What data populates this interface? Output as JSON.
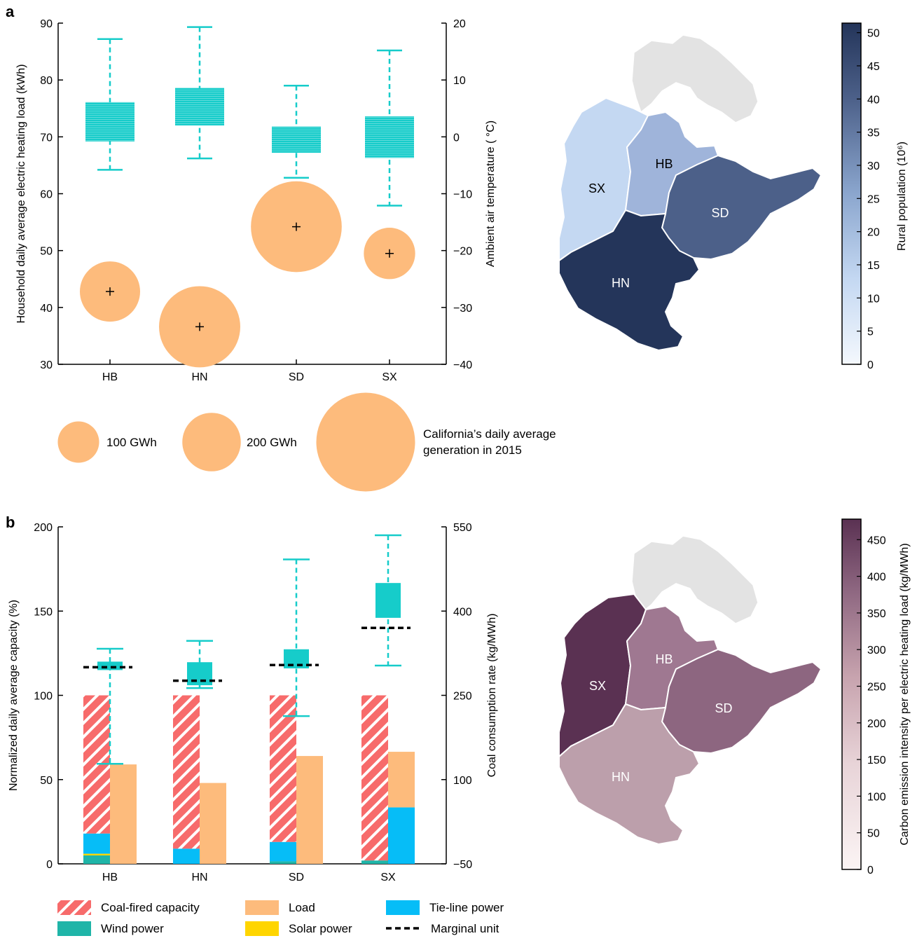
{
  "panel_a_label": "a",
  "panel_b_label": "b",
  "chart_data": [
    {
      "type": "box+bubble",
      "panel": "a",
      "categories": [
        "HB",
        "HN",
        "SD",
        "SX"
      ],
      "ylabel": "Household daily average electric heating load (kWh)",
      "ylim": [
        30,
        90
      ],
      "yticks": [
        30,
        40,
        50,
        60,
        70,
        80,
        90
      ],
      "y2label": "Ambient air temperature ( °C)",
      "y2lim": [
        -40,
        20
      ],
      "y2ticks": [
        -40,
        -30,
        -20,
        -10,
        0,
        10,
        20
      ],
      "boxes": [
        {
          "category": "HB",
          "min": 64.2,
          "q1": 69.2,
          "q3": 76.1,
          "max": 87.2
        },
        {
          "category": "HN",
          "min": 66.2,
          "q1": 72.0,
          "q3": 78.6,
          "max": 89.3
        },
        {
          "category": "SD",
          "min": 62.8,
          "q1": 67.2,
          "q3": 71.8,
          "max": 79.0
        },
        {
          "category": "SX",
          "min": 57.9,
          "q1": 66.3,
          "q3": 73.6,
          "max": 85.2
        }
      ],
      "bubbles": [
        {
          "category": "HB",
          "temperature": -27.2,
          "size_gwh": 110
        },
        {
          "category": "HN",
          "temperature": -33.4,
          "size_gwh": 200
        },
        {
          "category": "SD",
          "temperature": -15.8,
          "size_gwh": 250
        },
        {
          "category": "SX",
          "temperature": -20.5,
          "size_gwh": 80
        }
      ],
      "bubble_legend": [
        {
          "label": "100 GWh",
          "size_gwh": 100
        },
        {
          "label": "200 GWh",
          "size_gwh": 200
        },
        {
          "label": "California’s daily average generation in 2015",
          "label_lines": [
            "California’s daily average",
            "generation in 2015"
          ],
          "size_gwh": 540
        }
      ],
      "box_color": "#16CCCA",
      "bubble_color": "#FDBB7C"
    },
    {
      "type": "stacked-bar+box",
      "panel": "b",
      "categories": [
        "HB",
        "HN",
        "SD",
        "SX"
      ],
      "ylabel": "Normalized daily average capacity (%)",
      "ylim": [
        0,
        200
      ],
      "yticks": [
        0,
        50,
        100,
        150,
        200
      ],
      "y2label": "Coal consumption rate (kg/MWh)",
      "y2lim": [
        -50,
        550
      ],
      "y2ticks": [
        -50,
        100,
        250,
        400,
        550
      ],
      "supply_bars": [
        {
          "category": "HB",
          "wind": 5,
          "solar": 1,
          "tie_line": 12,
          "coal_fired": 82
        },
        {
          "category": "HN",
          "wind": 0,
          "solar": 0,
          "tie_line": 9,
          "coal_fired": 91
        },
        {
          "category": "SD",
          "wind": 1.5,
          "solar": 0,
          "tie_line": 11.5,
          "coal_fired": 87
        },
        {
          "category": "SX",
          "wind": 2,
          "solar": 0,
          "tie_line": 0,
          "coal_fired": 98
        }
      ],
      "load_bars": [
        {
          "category": "HB",
          "load": 59,
          "tie_line": 0
        },
        {
          "category": "HN",
          "load": 48,
          "tie_line": 0
        },
        {
          "category": "SD",
          "load": 64,
          "tie_line": 0
        },
        {
          "category": "SX",
          "load": 33,
          "tie_line": 33.5
        }
      ],
      "coal_rate_boxes": [
        {
          "category": "HB",
          "min": 128,
          "q1": 295,
          "q3": 310,
          "max": 333,
          "marginal": 300
        },
        {
          "category": "HN",
          "min": 263,
          "q1": 268,
          "q3": 309,
          "max": 347,
          "marginal": 276
        },
        {
          "category": "SD",
          "min": 213,
          "q1": 298,
          "q3": 332,
          "max": 492,
          "marginal": 304
        },
        {
          "category": "SX",
          "min": 303,
          "q1": 388,
          "q3": 450,
          "max": 535,
          "marginal": 370
        }
      ],
      "legend": [
        {
          "key": "coal",
          "label": "Coal-fired capacity",
          "color": "#F76B6B"
        },
        {
          "key": "load",
          "label": "Load",
          "color": "#FDBB7C"
        },
        {
          "key": "tie",
          "label": "Tie-line power",
          "color": "#06BDF7"
        },
        {
          "key": "wind",
          "label": "Wind power",
          "color": "#1FB5A8"
        },
        {
          "key": "solar",
          "label": "Solar power",
          "color": "#FFD500"
        },
        {
          "key": "marginal",
          "label": "Marginal unit",
          "color": "#000000"
        }
      ]
    }
  ],
  "map_a": {
    "colorbar_label": "Rural population (10⁶)",
    "colorbar_ticks": [
      0,
      5,
      10,
      15,
      20,
      25,
      30,
      35,
      40,
      45,
      50
    ],
    "cmap": [
      "#F4F8FD",
      "#C4D8F2",
      "#8BA6CE",
      "#4C6089",
      "#24355A"
    ],
    "regions": [
      {
        "code": "SX",
        "value": 12
      },
      {
        "code": "HB",
        "value": 25
      },
      {
        "code": "SD",
        "value": 41
      },
      {
        "code": "HN",
        "value": 51
      }
    ]
  },
  "map_b": {
    "colorbar_label": "Carbon emission intensity per electric heating load (kg/MWh)",
    "colorbar_ticks": [
      0,
      50,
      100,
      150,
      200,
      250,
      300,
      350,
      400,
      450
    ],
    "cmap": [
      "#FBF4F4",
      "#E8D4D8",
      "#C7A3AE",
      "#8D6680",
      "#5A3152"
    ],
    "regions": [
      {
        "code": "SX",
        "value": 470
      },
      {
        "code": "HB",
        "value": 355
      },
      {
        "code": "SD",
        "value": 375
      },
      {
        "code": "HN",
        "value": 275
      }
    ]
  }
}
